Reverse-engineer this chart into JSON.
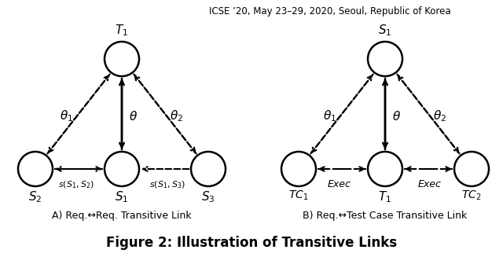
{
  "title_top": "ICSE ’20, May 23–29, 2020, Seoul, Republic of Korea",
  "figure_title": "Figure 2: Illustration of Transitive Links",
  "subtitle_A": "A) Req.↔Req. Transitive Link",
  "subtitle_B": "B) Req.↔Test Case Transitive Link",
  "background_color": "#ffffff",
  "figsize": [
    6.4,
    3.55
  ],
  "dpi": 100
}
